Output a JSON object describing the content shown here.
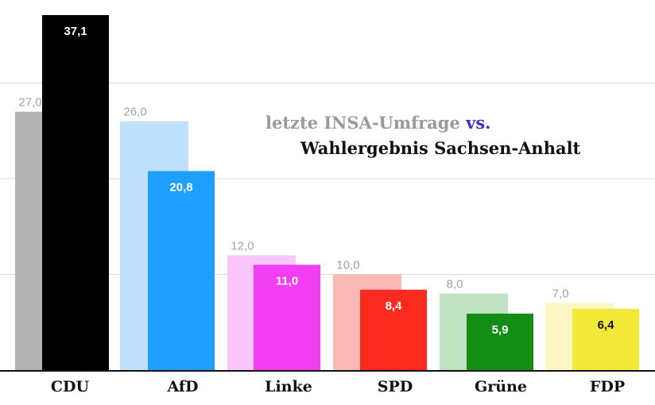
{
  "title_prefix": "letzte INSA-Umfrage ",
  "title_vs": "vs.",
  "title_line2": "Wahlergebnis Sachsen-Anhalt",
  "chart_data": {
    "type": "bar",
    "categories": [
      "CDU",
      "AfD",
      "Linke",
      "SPD",
      "Grüne",
      "FDP"
    ],
    "series": [
      {
        "values": [
          27.0,
          26.0,
          12.0,
          10.0,
          8.0,
          7.0
        ],
        "labels": [
          "27,0",
          "26,0",
          "12,0",
          "10,0",
          "8,0",
          "7,0"
        ],
        "colors": [
          "#b3b3b3",
          "#bfe1fb",
          "#fbc6fb",
          "#fcbab7",
          "#bfe3c0",
          "#fbf6c3"
        ]
      },
      {
        "values": [
          37.1,
          20.8,
          11.0,
          8.4,
          5.9,
          6.4
        ],
        "labels": [
          "37,1",
          "20,8",
          "11,0",
          "8,4",
          "5,9",
          "6,4"
        ],
        "colors": [
          "#000000",
          "#1f9fff",
          "#f03ef0",
          "#fb2a1f",
          "#138d14",
          "#f2e93a"
        ]
      }
    ],
    "label_colors_new": [
      "#ffffff",
      "#ffffff",
      "#ffffff",
      "#ffffff",
      "#ffffff",
      "#111111"
    ],
    "label_color_old": "#a3a3a3",
    "ylim": [
      0,
      37.1
    ],
    "grid": true,
    "gridlines": [
      10,
      20,
      30
    ]
  }
}
